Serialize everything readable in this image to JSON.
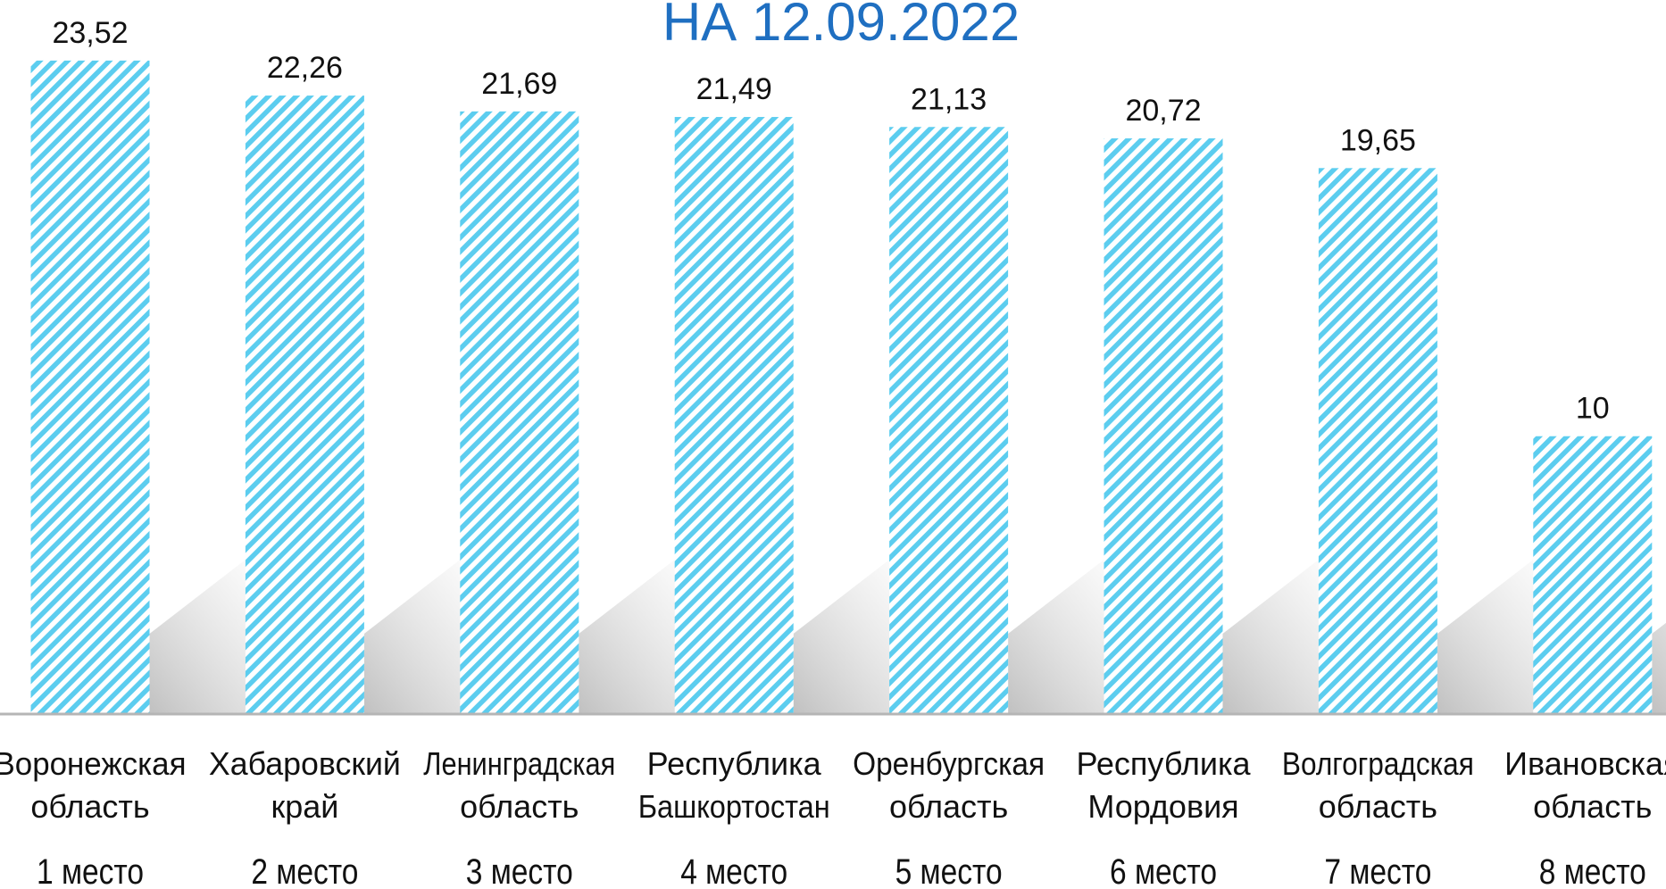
{
  "chart_data": {
    "type": "bar",
    "title": "НА 12.09.2022",
    "categories": [
      [
        "Воронежская",
        "область"
      ],
      [
        "Хабаровский",
        "край"
      ],
      [
        "Ленинградская",
        "область"
      ],
      [
        "Республика",
        "Башкортостан"
      ],
      [
        "Оренбургская",
        "область"
      ],
      [
        "Республика",
        "Мордовия"
      ],
      [
        "Волгоградская",
        "область"
      ],
      [
        "Ивановская",
        "область"
      ]
    ],
    "ranks": [
      "1 место",
      "2 место",
      "3 место",
      "4 место",
      "5 место",
      "6 место",
      "7 место",
      "8 место"
    ],
    "values": [
      23.52,
      22.26,
      21.69,
      21.49,
      21.13,
      20.72,
      19.65,
      10
    ],
    "value_labels": [
      "23,52",
      "22,26",
      "21,69",
      "21,49",
      "21,13",
      "20,72",
      "19,65",
      "10"
    ],
    "color": "#5ccdef",
    "ylim": [
      0,
      25.7
    ]
  }
}
